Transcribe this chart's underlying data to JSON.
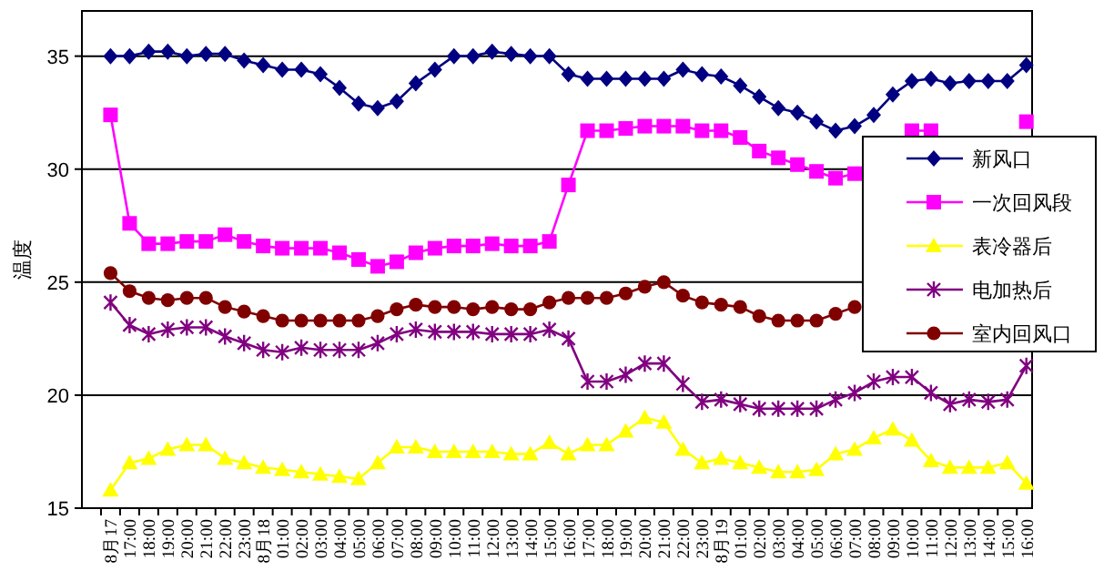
{
  "chart_data": {
    "type": "line",
    "ylabel": "温度",
    "categories": [
      "8月17",
      "17:00",
      "18:00",
      "19:00",
      "20:00",
      "21:00",
      "22:00",
      "23:00",
      "8月18",
      "01:00",
      "02:00",
      "03:00",
      "04:00",
      "05:00",
      "06:00",
      "07:00",
      "08:00",
      "09:00",
      "10:00",
      "11:00",
      "12:00",
      "13:00",
      "14:00",
      "15:00",
      "16:00",
      "17:00",
      "18:00",
      "19:00",
      "20:00",
      "21:00",
      "22:00",
      "23:00",
      "8月19",
      "01:00",
      "02:00",
      "03:00",
      "04:00",
      "05:00",
      "06:00",
      "07:00",
      "08:00",
      "09:00",
      "10:00",
      "11:00",
      "12:00",
      "13:00",
      "14:00",
      "15:00",
      "16:00"
    ],
    "ylim": [
      15,
      37
    ],
    "yticks": [
      15,
      20,
      25,
      30,
      35
    ],
    "grid": "y",
    "legend": "right",
    "series": [
      {
        "name": "新风口",
        "color": "#000080",
        "marker": "diamond",
        "values": [
          35.0,
          35.0,
          35.2,
          35.2,
          35.0,
          35.1,
          35.1,
          34.8,
          34.6,
          34.4,
          34.4,
          34.2,
          33.6,
          32.9,
          32.7,
          33.0,
          33.8,
          34.4,
          35.0,
          35.0,
          35.2,
          35.1,
          35.0,
          35.0,
          34.2,
          34.0,
          34.0,
          34.0,
          34.0,
          34.0,
          34.4,
          34.2,
          34.1,
          33.7,
          33.2,
          32.7,
          32.5,
          32.1,
          31.7,
          31.9,
          32.4,
          33.3,
          33.9,
          34.0,
          33.8,
          33.9,
          33.9,
          33.9,
          34.6
        ]
      },
      {
        "name": "一次回风段",
        "color": "#ff00ff",
        "marker": "square",
        "values": [
          32.4,
          27.6,
          26.7,
          26.7,
          26.8,
          26.8,
          27.1,
          26.8,
          26.6,
          26.5,
          26.5,
          26.5,
          26.3,
          26.0,
          25.7,
          25.9,
          26.3,
          26.5,
          26.6,
          26.6,
          26.7,
          26.6,
          26.6,
          26.8,
          29.3,
          31.7,
          31.7,
          31.8,
          31.9,
          31.9,
          31.9,
          31.7,
          31.7,
          31.4,
          30.8,
          30.5,
          30.2,
          29.9,
          29.6,
          29.8,
          null,
          null,
          31.7,
          31.7,
          null,
          null,
          null,
          null,
          32.1
        ]
      },
      {
        "name": "表冷器后",
        "color": "#ffff00",
        "marker": "triangle",
        "values": [
          15.8,
          17.0,
          17.2,
          17.6,
          17.8,
          17.8,
          17.2,
          17.0,
          16.8,
          16.7,
          16.6,
          16.5,
          16.4,
          16.3,
          17.0,
          17.7,
          17.7,
          17.5,
          17.5,
          17.5,
          17.5,
          17.4,
          17.4,
          17.9,
          17.4,
          17.8,
          17.8,
          18.4,
          19.0,
          18.8,
          17.6,
          17.0,
          17.2,
          17.0,
          16.8,
          16.6,
          16.6,
          16.7,
          17.4,
          17.6,
          18.1,
          18.5,
          18.0,
          17.1,
          16.8,
          16.8,
          16.8,
          17.0,
          16.1
        ]
      },
      {
        "name": "电加热后",
        "color": "#800080",
        "marker": "cross",
        "values": [
          24.1,
          23.1,
          22.7,
          22.9,
          23.0,
          23.0,
          22.6,
          22.3,
          22.0,
          21.9,
          22.1,
          22.0,
          22.0,
          22.0,
          22.3,
          22.7,
          22.9,
          22.8,
          22.8,
          22.8,
          22.7,
          22.7,
          22.7,
          22.9,
          22.5,
          20.6,
          20.6,
          20.9,
          21.4,
          21.4,
          20.5,
          19.7,
          19.8,
          19.6,
          19.4,
          19.4,
          19.4,
          19.4,
          19.8,
          20.1,
          20.6,
          20.8,
          20.8,
          20.1,
          19.6,
          19.8,
          19.7,
          19.8,
          21.3
        ]
      },
      {
        "name": "室内回风口",
        "color": "#800000",
        "marker": "circle",
        "values": [
          25.4,
          24.6,
          24.3,
          24.2,
          24.3,
          24.3,
          23.9,
          23.7,
          23.5,
          23.3,
          23.3,
          23.3,
          23.3,
          23.3,
          23.5,
          23.8,
          24.0,
          23.9,
          23.9,
          23.8,
          23.9,
          23.8,
          23.8,
          24.1,
          24.3,
          24.3,
          24.3,
          24.5,
          24.8,
          25.0,
          24.4,
          24.1,
          24.0,
          23.9,
          23.5,
          23.3,
          23.3,
          23.3,
          23.6,
          23.9,
          null,
          null,
          null,
          null,
          null,
          null,
          null,
          null,
          null
        ]
      }
    ]
  }
}
